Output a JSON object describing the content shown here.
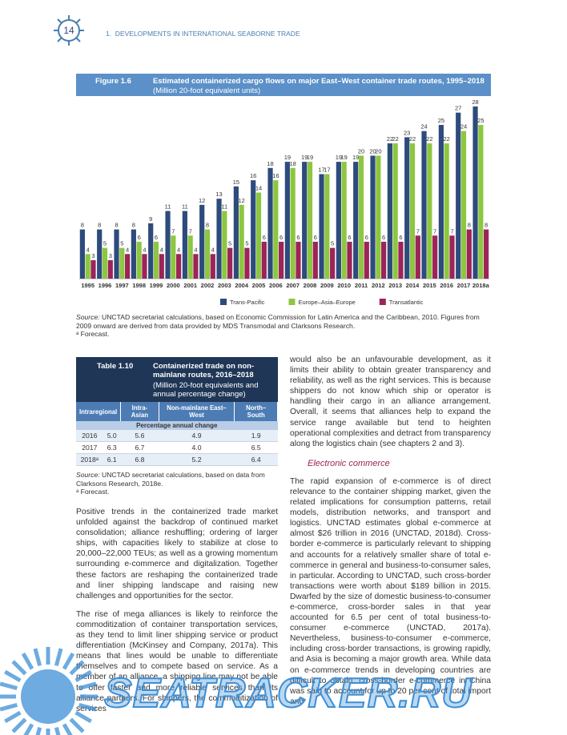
{
  "header": {
    "page_number": "14",
    "running_title": "1.  DEVELOPMENTS IN INTERNATIONAL SEABORNE TRADE"
  },
  "figure": {
    "label": "Figure 1.6",
    "title": "Estimated containerized cargo flows on major East–West container trade routes, 1995–2018",
    "subtitle": "(Million 20-foot equivalent units)",
    "source_label": "Source:",
    "source_text": "UNCTAD secretariat calculations, based on Economic Commission for Latin America and the Caribbean, 2010. Figures from 2009 onward are derived from data provided by MDS Transmodal and Clarksons Research.",
    "note": "ᵃ Forecast."
  },
  "chart_data": {
    "type": "bar",
    "categories": [
      "1995",
      "1996",
      "1997",
      "1998",
      "1999",
      "2000",
      "2001",
      "2002",
      "2003",
      "2004",
      "2005",
      "2006",
      "2007",
      "2008",
      "2009",
      "2010",
      "2011",
      "2012",
      "2013",
      "2014",
      "2015",
      "2016",
      "2017",
      "2018a"
    ],
    "series": [
      {
        "name": "Trans-Pacific",
        "color": "#2d4b7c",
        "values": [
          8,
          8,
          8,
          8,
          9,
          11,
          11,
          12,
          13,
          15,
          16,
          18,
          19,
          19,
          17,
          19,
          19,
          20,
          22,
          23,
          24,
          25,
          27,
          28
        ]
      },
      {
        "name": "Europe–Asia–Europe",
        "color": "#8dc641",
        "values": [
          4,
          5,
          5,
          6,
          6,
          7,
          7,
          8,
          11,
          12,
          14,
          16,
          18,
          19,
          17,
          19,
          20,
          20,
          22,
          22,
          22,
          22,
          24,
          25
        ]
      },
      {
        "name": "Transatlantic",
        "color": "#9c2458",
        "values": [
          3,
          3,
          4,
          4,
          4,
          4,
          4,
          4,
          5,
          5,
          6,
          6,
          6,
          6,
          5,
          6,
          6,
          6,
          6,
          7,
          7,
          7,
          8,
          8
        ]
      }
    ]
  },
  "table": {
    "label": "Table 1.10",
    "title": "Containerized trade on non-mainlane routes, 2016–2018",
    "subtitle": "(Million 20-foot equivalents and annual percentage change)",
    "columns": [
      "Intraregional",
      "Intra-Asian",
      "Non-mainlane East–West",
      "North–South"
    ],
    "subheader": "Percentage annual change",
    "rows": [
      [
        "2016",
        "5.0",
        "5.6",
        "4.9",
        "1.9"
      ],
      [
        "2017",
        "6.3",
        "6.7",
        "4.0",
        "6.5"
      ],
      [
        "2018ᵃ",
        "6.1",
        "6.8",
        "5.2",
        "6.4"
      ]
    ],
    "source_label": "Source:",
    "source_text": "UNCTAD secretariat calculations, based on data from Clarksons Research, 2018e.",
    "note": "ᵃ Forecast."
  },
  "body": {
    "left": [
      "Positive trends in the containerized trade market unfolded against the backdrop of continued market consolidation; alliance reshuffling; ordering of larger ships, with capacities likely to stabilize at close to 20,000–22,000 TEUs; as well as a growing momentum surrounding e-commerce and digitalization. Together these factors are reshaping the containerized trade and liner shipping landscape and raising new challenges and opportunities for the sector.",
      "The rise of mega alliances is likely to reinforce the commoditization of container transportation services, as they tend to limit liner shipping service or product differentiation (McKinsey and Company, 2017a). This means that lines would be unable to differentiate themselves and to compete based on service. As a member of an alliance, a shipping line may not be able to offer faster and more reliable services than its alliance partners. For shippers, the commoditization of services"
    ],
    "right_intro": "would also be an unfavourable development, as it limits their ability to obtain greater transparency and reliability, as well as the right services. This is because shippers do not know which ship or operator is handling their cargo in an alliance arrangement. Overall, it seems that alliances help to expand the service range available but tend to heighten operational complexities and detract from transparency along the logistics chain (see chapters 2 and 3).",
    "heading": "Electronic commerce",
    "right": [
      "The rapid expansion of e-commerce is of direct relevance to the container shipping market, given the related implications for consumption patterns, retail models, distribution networks, and transport and logistics. UNCTAD estimates global e-commerce at almost $26 trillion in 2016 (UNCTAD, 2018d). Cross-border e-commerce is particularly relevant to shipping and accounts for a relatively smaller share of total e-commerce in general and business-to-consumer sales, in particular. According to UNCTAD, such cross-border transactions were worth about $189 billion in 2015. Dwarfed by the size of domestic business-to-consumer e-commerce, cross-border sales in that year accounted for 6.5 per cent of total business-to-consumer e-commerce (UNCTAD, 2017a). Nevertheless, business-to-consumer e-commerce, including cross-border transactions, is growing rapidly, and Asia is becoming a major growth area. While data on e-commerce trends in developing countries are difficult to obtain, cross-border e-commerce in China was said to account for up to 20 per cent of total import and"
    ]
  },
  "watermark": "SEATRACKER.RU"
}
